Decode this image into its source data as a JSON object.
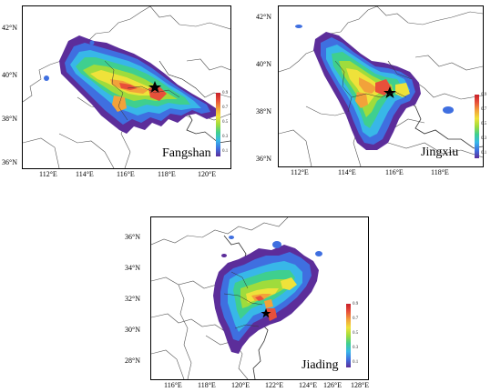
{
  "panels": [
    {
      "site": "Fangshan",
      "lat_labels": [
        "42°N",
        "40°N",
        "38°N",
        "36°N"
      ],
      "lon_labels": [
        "112°E",
        "114°E",
        "116°E",
        "118°E",
        "120°E"
      ],
      "colorbar_labels": [
        "0.9",
        "0.7",
        "0.5",
        "0.3",
        "0.1"
      ]
    },
    {
      "site": "Jingxiu",
      "lat_labels": [
        "42°N",
        "40°N",
        "38°N",
        "36°N"
      ],
      "lon_labels": [
        "112°E",
        "114°E",
        "116°E",
        "118°E"
      ],
      "colorbar_labels": [
        "0.9",
        "0.7",
        "0.5",
        "0.3",
        "0.1"
      ]
    },
    {
      "site": "Jiading",
      "lat_labels": [
        "36°N",
        "34°N",
        "32°N",
        "30°N",
        "28°N"
      ],
      "lon_labels": [
        "116°E",
        "118°E",
        "120°E",
        "122°E",
        "124°E",
        "126°E",
        "128°E"
      ],
      "colorbar_labels": [
        "0.9",
        "0.7",
        "0.5",
        "0.3",
        "0.1"
      ]
    }
  ],
  "colors": {
    "scale": [
      "#5c2d9a",
      "#3f6fe0",
      "#38b7e8",
      "#3fcf8f",
      "#9fdc3c",
      "#efe23a",
      "#f2a23a",
      "#e8503a",
      "#c8202a"
    ]
  }
}
